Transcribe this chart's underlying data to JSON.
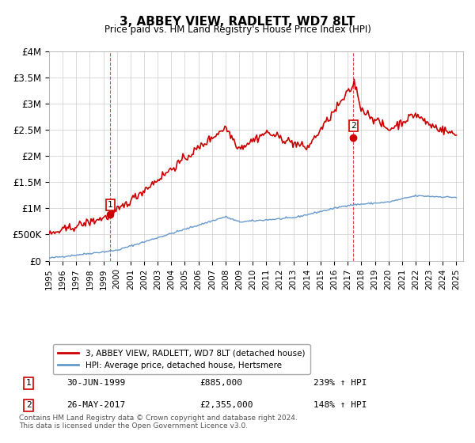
{
  "title": "3, ABBEY VIEW, RADLETT, WD7 8LT",
  "subtitle": "Price paid vs. HM Land Registry's House Price Index (HPI)",
  "legend_line1": "3, ABBEY VIEW, RADLETT, WD7 8LT (detached house)",
  "legend_line2": "HPI: Average price, detached house, Hertsmere",
  "annotation1_label": "1",
  "annotation1_date": "30-JUN-1999",
  "annotation1_price": "£885,000",
  "annotation1_hpi": "239% ↑ HPI",
  "annotation2_label": "2",
  "annotation2_date": "26-MAY-2017",
  "annotation2_price": "£2,355,000",
  "annotation2_hpi": "148% ↑ HPI",
  "footnote": "Contains HM Land Registry data © Crown copyright and database right 2024.\nThis data is licensed under the Open Government Licence v3.0.",
  "red_color": "#cc0000",
  "blue_color": "#6699cc",
  "dashed_red": "#cc0000",
  "ylim_min": 0,
  "ylim_max": 4000000,
  "yticks": [
    0,
    500000,
    1000000,
    1500000,
    2000000,
    2500000,
    3000000,
    3500000,
    4000000
  ],
  "ytick_labels": [
    "£0",
    "£500K",
    "£1M",
    "£1.5M",
    "£2M",
    "£2.5M",
    "£3M",
    "£3.5M",
    "£4M"
  ],
  "xtick_years": [
    1995,
    1996,
    1997,
    1998,
    1999,
    2000,
    2001,
    2002,
    2003,
    2004,
    2005,
    2006,
    2007,
    2008,
    2009,
    2010,
    2011,
    2012,
    2013,
    2014,
    2015,
    2016,
    2017,
    2018,
    2019,
    2020,
    2021,
    2022,
    2023,
    2024,
    2025
  ],
  "sale1_x": 1999.5,
  "sale1_y": 885000,
  "sale2_x": 2017.4,
  "sale2_y": 2355000,
  "background_color": "#ffffff",
  "grid_color": "#cccccc"
}
